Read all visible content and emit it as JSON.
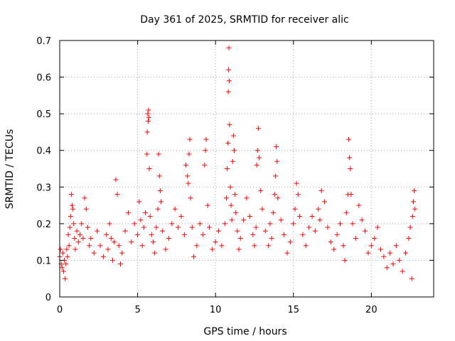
{
  "chart_data": {
    "type": "scatter",
    "title": "Day 361 of 2025, SRMTID for receiver alic",
    "xlabel": "GPS time / hours",
    "ylabel": "SRMTID / TECUs",
    "xlim": [
      0,
      24
    ],
    "ylim": [
      0,
      0.7
    ],
    "xticks": [
      0,
      5,
      10,
      15,
      20
    ],
    "xtick_labels": [
      "0",
      "5",
      "10",
      "15",
      "20"
    ],
    "yticks": [
      0,
      0.1,
      0.2,
      0.3,
      0.4,
      0.5,
      0.6,
      0.7
    ],
    "ytick_labels": [
      "0",
      "0.1",
      "0.2",
      "0.3",
      "0.4",
      "0.5",
      "0.6",
      "0.7"
    ],
    "grid": true,
    "marker": "+",
    "series": [
      {
        "name": "SRMTID",
        "color": "#ff0000",
        "x": [
          0.0,
          0.05,
          0.1,
          0.15,
          0.2,
          0.25,
          0.3,
          0.35,
          0.4,
          0.45,
          0.5,
          0.55,
          0.6,
          0.65,
          0.7,
          0.75,
          0.8,
          0.85,
          0.9,
          0.95,
          1.0,
          1.1,
          1.2,
          1.3,
          1.4,
          1.5,
          1.6,
          1.7,
          1.8,
          1.9,
          2.0,
          2.2,
          2.4,
          2.6,
          2.8,
          3.0,
          3.1,
          3.2,
          3.3,
          3.4,
          3.5,
          3.6,
          3.7,
          3.8,
          3.9,
          4.0,
          4.2,
          4.4,
          4.6,
          4.8,
          5.0,
          5.1,
          5.2,
          5.3,
          5.4,
          5.5,
          5.6,
          5.62,
          5.65,
          5.68,
          5.7,
          5.72,
          5.75,
          5.8,
          5.9,
          6.0,
          6.1,
          6.2,
          6.3,
          6.35,
          6.4,
          6.45,
          6.5,
          6.6,
          6.8,
          7.0,
          7.2,
          7.4,
          7.6,
          7.8,
          8.0,
          8.1,
          8.2,
          8.25,
          8.3,
          8.35,
          8.4,
          8.5,
          8.6,
          8.8,
          9.0,
          9.2,
          9.3,
          9.35,
          9.4,
          9.5,
          9.6,
          9.8,
          10.0,
          10.2,
          10.4,
          10.6,
          10.7,
          10.75,
          10.8,
          10.82,
          10.84,
          10.86,
          10.88,
          10.9,
          10.95,
          11.0,
          11.05,
          11.1,
          11.15,
          11.2,
          11.25,
          11.3,
          11.4,
          11.5,
          11.6,
          11.8,
          12.0,
          12.2,
          12.4,
          12.5,
          12.6,
          12.65,
          12.7,
          12.75,
          12.8,
          12.9,
          13.0,
          13.2,
          13.4,
          13.5,
          13.6,
          13.7,
          13.8,
          13.85,
          13.9,
          13.95,
          14.0,
          14.2,
          14.4,
          14.6,
          14.8,
          15.0,
          15.1,
          15.2,
          15.3,
          15.4,
          15.6,
          15.8,
          16.0,
          16.2,
          16.4,
          16.6,
          16.7,
          16.8,
          17.0,
          17.2,
          17.4,
          17.6,
          17.8,
          18.0,
          18.2,
          18.3,
          18.4,
          18.5,
          18.55,
          18.6,
          18.65,
          18.7,
          18.8,
          19.0,
          19.2,
          19.4,
          19.6,
          19.8,
          20.0,
          20.2,
          20.4,
          20.6,
          20.8,
          21.0,
          21.2,
          21.4,
          21.6,
          21.8,
          22.0,
          22.2,
          22.4,
          22.5,
          22.6,
          22.65,
          22.7,
          22.75,
          22.8
        ],
        "y": [
          0.11,
          0.13,
          0.09,
          0.08,
          0.12,
          0.07,
          0.1,
          0.05,
          0.09,
          0.13,
          0.11,
          0.17,
          0.14,
          0.19,
          0.22,
          0.28,
          0.25,
          0.24,
          0.2,
          0.16,
          0.13,
          0.18,
          0.15,
          0.17,
          0.2,
          0.16,
          0.27,
          0.24,
          0.19,
          0.14,
          0.16,
          0.12,
          0.18,
          0.14,
          0.11,
          0.17,
          0.13,
          0.2,
          0.16,
          0.1,
          0.15,
          0.32,
          0.28,
          0.14,
          0.09,
          0.12,
          0.18,
          0.23,
          0.15,
          0.2,
          0.17,
          0.26,
          0.21,
          0.14,
          0.19,
          0.23,
          0.39,
          0.45,
          0.5,
          0.48,
          0.51,
          0.49,
          0.35,
          0.22,
          0.17,
          0.15,
          0.12,
          0.19,
          0.24,
          0.39,
          0.33,
          0.29,
          0.26,
          0.18,
          0.13,
          0.16,
          0.2,
          0.24,
          0.19,
          0.22,
          0.17,
          0.36,
          0.33,
          0.31,
          0.39,
          0.43,
          0.27,
          0.19,
          0.11,
          0.14,
          0.2,
          0.17,
          0.36,
          0.4,
          0.43,
          0.25,
          0.19,
          0.13,
          0.15,
          0.18,
          0.14,
          0.2,
          0.27,
          0.35,
          0.42,
          0.56,
          0.62,
          0.68,
          0.59,
          0.47,
          0.3,
          0.25,
          0.21,
          0.37,
          0.44,
          0.4,
          0.28,
          0.23,
          0.18,
          0.13,
          0.16,
          0.21,
          0.27,
          0.22,
          0.17,
          0.14,
          0.19,
          0.36,
          0.4,
          0.46,
          0.38,
          0.29,
          0.24,
          0.18,
          0.14,
          0.2,
          0.16,
          0.23,
          0.28,
          0.33,
          0.41,
          0.37,
          0.27,
          0.21,
          0.17,
          0.12,
          0.15,
          0.2,
          0.24,
          0.31,
          0.28,
          0.22,
          0.17,
          0.14,
          0.19,
          0.22,
          0.18,
          0.24,
          0.21,
          0.29,
          0.26,
          0.19,
          0.15,
          0.13,
          0.17,
          0.2,
          0.14,
          0.1,
          0.23,
          0.28,
          0.43,
          0.38,
          0.35,
          0.28,
          0.2,
          0.16,
          0.25,
          0.21,
          0.18,
          0.12,
          0.14,
          0.16,
          0.19,
          0.13,
          0.11,
          0.08,
          0.12,
          0.09,
          0.14,
          0.1,
          0.07,
          0.12,
          0.16,
          0.19,
          0.05,
          0.22,
          0.26,
          0.29,
          0.24
        ]
      }
    ]
  }
}
